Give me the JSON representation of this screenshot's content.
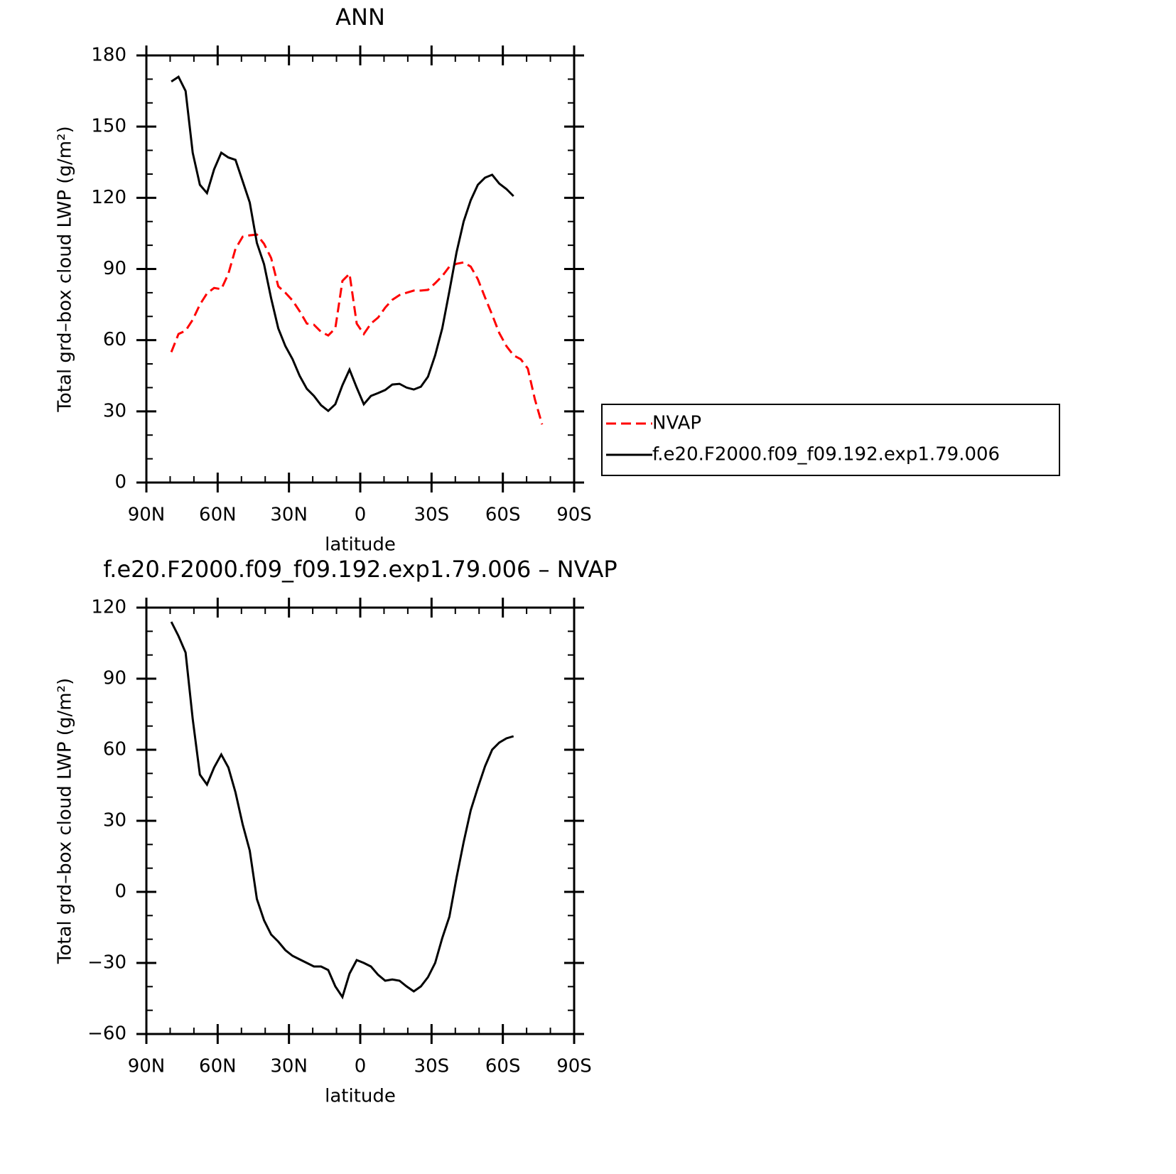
{
  "chart_data": [
    {
      "type": "line",
      "title": "ANN",
      "xlabel": "latitude",
      "ylabel": "Total grd–box cloud LWP (g/m²)",
      "x": [
        79.5,
        76.5,
        73.5,
        70.5,
        67.5,
        64.5,
        61.5,
        58.5,
        55.5,
        52.5,
        49.5,
        46.5,
        43.5,
        40.5,
        37.5,
        34.5,
        31.5,
        28.5,
        25.5,
        22.5,
        19.5,
        16.5,
        13.5,
        10.5,
        7.5,
        4.5,
        1.5,
        -1.5,
        -4.5,
        -7.5,
        -10.5,
        -13.5,
        -16.5,
        -19.5,
        -22.5,
        -25.5,
        -28.5,
        -31.5,
        -34.5,
        -37.5,
        -40.5,
        -43.5,
        -46.5,
        -49.5,
        -52.5,
        -55.5,
        -58.5,
        -61.5,
        -64.5,
        -67.5,
        -70.5,
        -73.5,
        -76.5
      ],
      "xlim": [
        90,
        -90
      ],
      "xticks": [
        {
          "value": 90,
          "label": "90N"
        },
        {
          "value": 60,
          "label": "60N"
        },
        {
          "value": 30,
          "label": "30N"
        },
        0,
        {
          "value": -30,
          "label": "30S"
        },
        {
          "value": -60,
          "label": "60S"
        },
        {
          "value": -90,
          "label": "90S"
        }
      ],
      "xminorticks": [
        80,
        70,
        50,
        40,
        20,
        10,
        -10,
        -20,
        -40,
        -50,
        -70,
        -80
      ],
      "ylim": [
        0,
        180
      ],
      "yticks": [
        0,
        30,
        60,
        90,
        120,
        150,
        180
      ],
      "yminorticks": [
        10,
        20,
        40,
        50,
        70,
        80,
        100,
        110,
        130,
        140,
        160,
        170
      ],
      "legend": "right",
      "series": [
        {
          "name": "NVAP",
          "color": "#ff0000",
          "linestyle": "dashed",
          "values": [
            55,
            62.6,
            64,
            68.6,
            75,
            79.7,
            82,
            81.5,
            88,
            98.5,
            103.6,
            104.2,
            104.5,
            100.6,
            94.6,
            82.7,
            80,
            76.7,
            72.2,
            67,
            66.5,
            63.5,
            62,
            65,
            85,
            88,
            67,
            62.6,
            67,
            69.5,
            73.7,
            77,
            79,
            80,
            80.9,
            80.9,
            81.2,
            84,
            87,
            91,
            92.2,
            92.8,
            91,
            85.7,
            78,
            70.7,
            63,
            57.5,
            53.6,
            52,
            48,
            35,
            24.5
          ]
        },
        {
          "name": "f.e20.F2000.f09_f09.192.exp1.79.006",
          "color": "#000000",
          "linestyle": "solid",
          "values": [
            169,
            171,
            165,
            139,
            125.5,
            122,
            132,
            139,
            137,
            136,
            127,
            118,
            101,
            92,
            77.6,
            65,
            57.5,
            52,
            45,
            39.5,
            36.5,
            32.6,
            30.2,
            33,
            41,
            47.6,
            40,
            33,
            36.5,
            37.7,
            39,
            41.3,
            41.6,
            40,
            39.2,
            40.4,
            44.6,
            53.6,
            65,
            80.6,
            97,
            110,
            119,
            125.5,
            128.5,
            129.7,
            126,
            123.7,
            120.7,
            null,
            null,
            null,
            null
          ]
        }
      ]
    },
    {
      "type": "line",
      "title": "f.e20.F2000.f09_f09.192.exp1.79.006 – NVAP",
      "xlabel": "latitude",
      "ylabel": "Total grd–box cloud LWP (g/m²)",
      "x": [
        79.5,
        76.5,
        73.5,
        70.5,
        67.5,
        64.5,
        61.5,
        58.5,
        55.5,
        52.5,
        49.5,
        46.5,
        43.5,
        40.5,
        37.5,
        34.5,
        31.5,
        28.5,
        25.5,
        22.5,
        19.5,
        16.5,
        13.5,
        10.5,
        7.5,
        4.5,
        1.5,
        -1.5,
        -4.5,
        -7.5,
        -10.5,
        -13.5,
        -16.5,
        -19.5,
        -22.5,
        -25.5,
        -28.5,
        -31.5,
        -34.5,
        -37.5,
        -40.5,
        -43.5,
        -46.5,
        -49.5,
        -52.5,
        -55.5,
        -58.5,
        -61.5,
        -64.5,
        -67.5,
        -70.5,
        -73.5,
        -76.5
      ],
      "xlim": [
        90,
        -90
      ],
      "xticks": [
        {
          "value": 90,
          "label": "90N"
        },
        {
          "value": 60,
          "label": "60N"
        },
        {
          "value": 30,
          "label": "30N"
        },
        0,
        {
          "value": -30,
          "label": "30S"
        },
        {
          "value": -60,
          "label": "60S"
        },
        {
          "value": -90,
          "label": "90S"
        }
      ],
      "xminorticks": [
        80,
        70,
        50,
        40,
        20,
        10,
        -10,
        -20,
        -40,
        -50,
        -70,
        -80
      ],
      "ylim": [
        -60,
        120
      ],
      "yticks": [
        {
          "value": -60,
          "label": "−60"
        },
        {
          "value": -30,
          "label": "−30"
        },
        0,
        30,
        60,
        90,
        120
      ],
      "yminorticks": [
        -50,
        -40,
        -20,
        -10,
        10,
        20,
        40,
        50,
        70,
        80,
        100,
        110
      ],
      "series": [
        {
          "color": "#000000",
          "linestyle": "solid",
          "values": [
            114,
            108,
            101,
            73,
            49.5,
            45.3,
            52.5,
            58,
            52.5,
            42,
            28.5,
            17.4,
            -3,
            -12,
            -18,
            -21,
            -24.6,
            -27,
            -28.5,
            -30,
            -31.5,
            -31.5,
            -33,
            -39.9,
            -44.4,
            -34.5,
            -28.8,
            -30,
            -31.5,
            -35,
            -37.5,
            -37,
            -37.5,
            -39.9,
            -42,
            -39.9,
            -36,
            -30,
            -19.5,
            -10.5,
            6,
            21,
            34.5,
            44,
            53,
            60,
            63,
            64.8,
            65.7,
            null,
            null,
            null,
            null
          ]
        }
      ]
    }
  ]
}
